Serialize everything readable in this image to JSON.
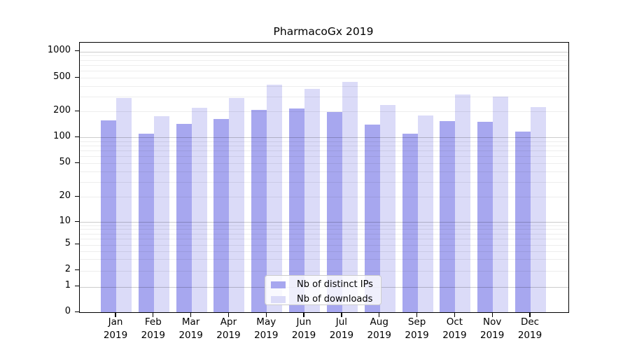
{
  "chart_data": {
    "type": "bar",
    "title": "PharmacoGx 2019",
    "categories": [
      {
        "month": "Jan",
        "year": "2019"
      },
      {
        "month": "Feb",
        "year": "2019"
      },
      {
        "month": "Mar",
        "year": "2019"
      },
      {
        "month": "Apr",
        "year": "2019"
      },
      {
        "month": "May",
        "year": "2019"
      },
      {
        "month": "Jun",
        "year": "2019"
      },
      {
        "month": "Jul",
        "year": "2019"
      },
      {
        "month": "Aug",
        "year": "2019"
      },
      {
        "month": "Sep",
        "year": "2019"
      },
      {
        "month": "Oct",
        "year": "2019"
      },
      {
        "month": "Nov",
        "year": "2019"
      },
      {
        "month": "Dec",
        "year": "2019"
      }
    ],
    "series": [
      {
        "name": "Nb of distinct IPs",
        "color": "#a7a7ef",
        "values": [
          157,
          110,
          143,
          164,
          209,
          214,
          197,
          140,
          110,
          155,
          150,
          117
        ]
      },
      {
        "name": "Nb of downloads",
        "color": "#dbdbf8",
        "values": [
          290,
          175,
          222,
          290,
          410,
          370,
          445,
          237,
          178,
          315,
          300,
          224
        ]
      }
    ],
    "y_axis": {
      "scale": "log-like with zero baseline",
      "ticks": [
        0,
        1,
        2,
        5,
        10,
        20,
        50,
        100,
        200,
        500,
        1000
      ],
      "range": [
        0,
        1000
      ],
      "grid": true
    },
    "x_axis": {
      "tick_style": "two-line month/year labels"
    },
    "legend": {
      "position": "inside-bottom-center",
      "items": [
        "Nb of distinct IPs",
        "Nb of downloads"
      ]
    }
  }
}
